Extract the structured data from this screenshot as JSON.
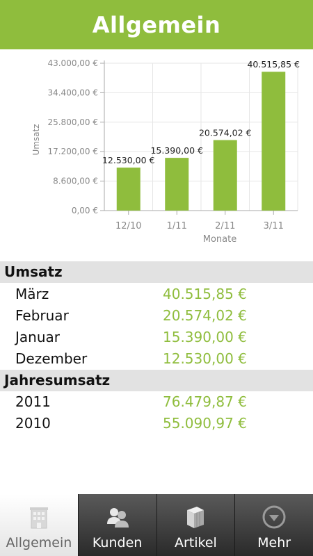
{
  "header": {
    "title": "Allgemein"
  },
  "chart_data": {
    "type": "bar",
    "categories": [
      "12/10",
      "1/11",
      "2/11",
      "3/11"
    ],
    "values": [
      12530.0,
      15390.0,
      20574.02,
      40515.85
    ],
    "value_labels": [
      "12.530,00 €",
      "15.390,00 €",
      "20.574,02 €",
      "40.515,85 €"
    ],
    "y_ticks": [
      0,
      8600,
      17200,
      25800,
      34400,
      43000
    ],
    "y_tick_labels": [
      "0,00 €",
      "8.600,00 €",
      "17.200,00 €",
      "25.800,00 €",
      "34.400,00 €",
      "43.000,00 €"
    ],
    "ylim": [
      0,
      43000
    ],
    "xlabel": "Monate",
    "ylabel": "Umsatz",
    "grid": true,
    "bar_color": "#8fbd3d"
  },
  "sections": [
    {
      "title": "Umsatz",
      "rows": [
        {
          "label": "März",
          "value": "40.515,85 €"
        },
        {
          "label": "Februar",
          "value": "20.574,02 €"
        },
        {
          "label": "Januar",
          "value": "15.390,00 €"
        },
        {
          "label": "Dezember",
          "value": "12.530,00 €"
        }
      ]
    },
    {
      "title": "Jahresumsatz",
      "rows": [
        {
          "label": "2011",
          "value": "76.479,87 €"
        },
        {
          "label": "2010",
          "value": "55.090,97 €"
        }
      ]
    }
  ],
  "tabs": [
    {
      "label": "Allgemein",
      "icon": "building-icon",
      "active": true
    },
    {
      "label": "Kunden",
      "icon": "people-icon",
      "active": false
    },
    {
      "label": "Artikel",
      "icon": "boxes-icon",
      "active": false
    },
    {
      "label": "Mehr",
      "icon": "more-icon",
      "active": false
    }
  ],
  "colors": {
    "accent": "#8fbd3d",
    "section_bg": "#e2e2e2"
  }
}
